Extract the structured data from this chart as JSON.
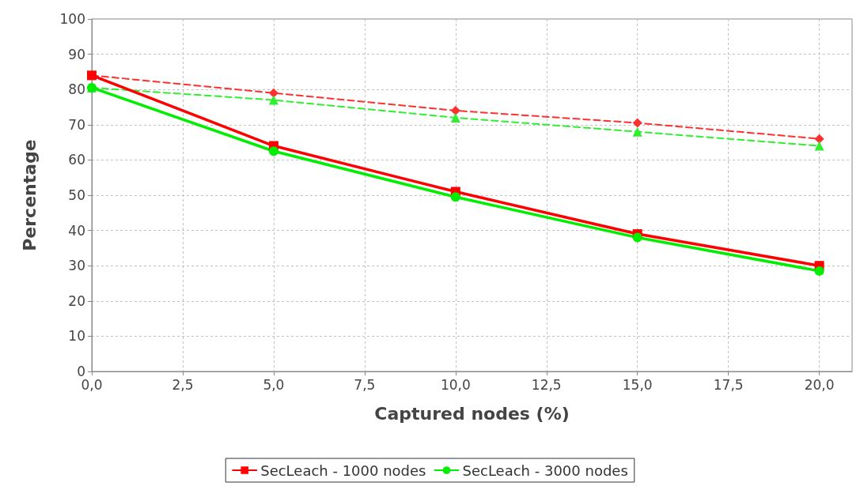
{
  "chart_data": {
    "type": "line",
    "xlabel": "Captured nodes (%)",
    "ylabel": "Percentage",
    "x": [
      0,
      5,
      10,
      15,
      20
    ],
    "xlim": [
      0,
      20.9
    ],
    "xticks": [
      {
        "value": 0,
        "label": "0,0"
      },
      {
        "value": 2.5,
        "label": "2,5"
      },
      {
        "value": 5,
        "label": "5,0"
      },
      {
        "value": 7.5,
        "label": "7,5"
      },
      {
        "value": 10,
        "label": "10,0"
      },
      {
        "value": 12.5,
        "label": "12,5"
      },
      {
        "value": 15,
        "label": "15,0"
      },
      {
        "value": 17.5,
        "label": "17,5"
      },
      {
        "value": 20,
        "label": "20,0"
      }
    ],
    "ylim": [
      0,
      100
    ],
    "yticks": [
      0,
      10,
      20,
      30,
      40,
      50,
      60,
      70,
      80,
      90,
      100
    ],
    "grid": true,
    "legend": "bottom",
    "series": [
      {
        "name": "SecLeach - 1000 nodes",
        "color": "#ff0000",
        "marker": "square",
        "line_style": "solid",
        "values": [
          84,
          64,
          51,
          39,
          30
        ]
      },
      {
        "name": "SecLeach - 3000 nodes",
        "color": "#00ee00",
        "marker": "circle",
        "line_style": "solid",
        "values": [
          80.5,
          62.5,
          49.5,
          38,
          28.5
        ]
      },
      {
        "color": "#ff3030",
        "marker": "diamond",
        "line_style": "dashed",
        "values": [
          84,
          79,
          74,
          70.5,
          66
        ]
      },
      {
        "color": "#30ee30",
        "marker": "triangle",
        "line_style": "dashed",
        "values": [
          80.5,
          77,
          72,
          68,
          64
        ]
      }
    ]
  }
}
